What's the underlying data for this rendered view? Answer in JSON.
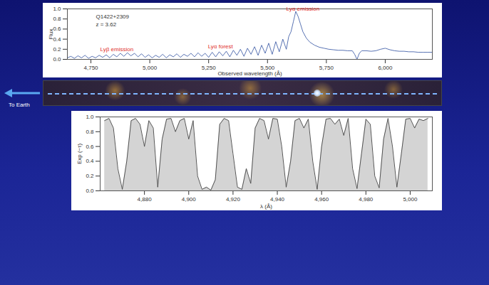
{
  "chart_data": [
    {
      "type": "line",
      "title": "Q1422+2309",
      "subtitle": "z = 3.62",
      "x_label": "Observed wavelength (Å)",
      "y_label": "Flux",
      "color": "#2f4f9f",
      "xlim": [
        4650,
        6200
      ],
      "xticks": [
        {
          "value": 4750,
          "label": "4,750"
        },
        {
          "value": 5000,
          "label": "5,000"
        },
        {
          "value": 5250,
          "label": "5,250"
        },
        {
          "value": 5500,
          "label": "5,500"
        },
        {
          "value": 5750,
          "label": "5,750"
        },
        {
          "value": 6000,
          "label": "6,000"
        }
      ],
      "ylim": [
        0,
        1
      ],
      "yticks": [
        {
          "value": 0,
          "label": "0.0"
        },
        {
          "value": 0.2,
          "label": "0.2"
        },
        {
          "value": 0.4,
          "label": "0.4"
        },
        {
          "value": 0.6,
          "label": "0.6"
        },
        {
          "value": 0.8,
          "label": "0.8"
        },
        {
          "value": 1,
          "label": "1.0"
        }
      ],
      "annotations": [
        {
          "text": "Lyα emission",
          "x": 5650,
          "y": 1.0
        },
        {
          "text": "Lyβ emission",
          "x": 4860,
          "y": 0.2
        },
        {
          "text": "Lyα forest",
          "x": 5300,
          "y": 0.25
        }
      ],
      "x": [
        4650,
        4665,
        4680,
        4695,
        4710,
        4725,
        4740,
        4755,
        4770,
        4785,
        4800,
        4815,
        4830,
        4845,
        4860,
        4875,
        4890,
        4905,
        4920,
        4935,
        4950,
        4965,
        4980,
        4995,
        5010,
        5025,
        5040,
        5055,
        5070,
        5085,
        5100,
        5115,
        5130,
        5145,
        5160,
        5175,
        5190,
        5205,
        5220,
        5235,
        5250,
        5265,
        5280,
        5295,
        5310,
        5325,
        5340,
        5355,
        5370,
        5385,
        5400,
        5415,
        5430,
        5445,
        5460,
        5475,
        5490,
        5505,
        5520,
        5535,
        5550,
        5565,
        5580,
        5590,
        5600,
        5610,
        5620,
        5630,
        5640,
        5650,
        5665,
        5680,
        5700,
        5720,
        5740,
        5760,
        5780,
        5800,
        5820,
        5840,
        5860,
        5870,
        5880,
        5890,
        5900,
        5920,
        5940,
        5960,
        5980,
        6000,
        6020,
        6040,
        6060,
        6080,
        6100,
        6120,
        6140,
        6160,
        6180,
        6200
      ],
      "values": [
        0.03,
        0.06,
        0.02,
        0.07,
        0.03,
        0.08,
        0.02,
        0.06,
        0.03,
        0.08,
        0.04,
        0.09,
        0.03,
        0.1,
        0.05,
        0.12,
        0.06,
        0.13,
        0.07,
        0.12,
        0.05,
        0.11,
        0.04,
        0.09,
        0.03,
        0.08,
        0.04,
        0.1,
        0.03,
        0.09,
        0.05,
        0.11,
        0.04,
        0.1,
        0.06,
        0.12,
        0.05,
        0.13,
        0.06,
        0.12,
        0.04,
        0.14,
        0.05,
        0.15,
        0.07,
        0.16,
        0.05,
        0.18,
        0.08,
        0.2,
        0.06,
        0.22,
        0.1,
        0.25,
        0.08,
        0.28,
        0.12,
        0.32,
        0.1,
        0.35,
        0.15,
        0.4,
        0.2,
        0.45,
        0.55,
        0.75,
        0.95,
        0.85,
        0.7,
        0.55,
        0.42,
        0.34,
        0.28,
        0.24,
        0.22,
        0.2,
        0.19,
        0.18,
        0.18,
        0.17,
        0.17,
        0.1,
        0.0,
        0.12,
        0.17,
        0.17,
        0.16,
        0.17,
        0.2,
        0.22,
        0.19,
        0.17,
        0.16,
        0.16,
        0.15,
        0.15,
        0.14,
        0.14,
        0.14,
        0.14
      ]
    },
    {
      "type": "area",
      "x_label": "λ (Å)",
      "y_label": "Exp (−τ)",
      "color": "#444444",
      "xlim": [
        4860,
        5010
      ],
      "xticks": [
        {
          "value": 4880,
          "label": "4,880"
        },
        {
          "value": 4900,
          "label": "4,900"
        },
        {
          "value": 4920,
          "label": "4,920"
        },
        {
          "value": 4940,
          "label": "4,940"
        },
        {
          "value": 4960,
          "label": "4,960"
        },
        {
          "value": 4980,
          "label": "4,980"
        },
        {
          "value": 5000,
          "label": "5,000"
        }
      ],
      "ylim": [
        0,
        1
      ],
      "yticks": [
        {
          "value": 0,
          "label": "0.0"
        },
        {
          "value": 0.2,
          "label": "0.2"
        },
        {
          "value": 0.4,
          "label": "0.4"
        },
        {
          "value": 0.6,
          "label": "0.6"
        },
        {
          "value": 0.8,
          "label": "0.8"
        },
        {
          "value": 1,
          "label": "1.0"
        }
      ],
      "x": [
        4862,
        4864,
        4866,
        4868,
        4870,
        4872,
        4874,
        4876,
        4878,
        4880,
        4882,
        4884,
        4886,
        4888,
        4890,
        4892,
        4894,
        4896,
        4898,
        4900,
        4902,
        4904,
        4906,
        4908,
        4910,
        4912,
        4914,
        4916,
        4918,
        4920,
        4922,
        4924,
        4926,
        4928,
        4930,
        4932,
        4934,
        4936,
        4938,
        4940,
        4942,
        4944,
        4946,
        4948,
        4950,
        4952,
        4954,
        4956,
        4958,
        4960,
        4962,
        4964,
        4966,
        4968,
        4970,
        4972,
        4974,
        4976,
        4978,
        4980,
        4982,
        4984,
        4986,
        4988,
        4990,
        4992,
        4994,
        4996,
        4998,
        5000,
        5002,
        5004,
        5006,
        5008
      ],
      "values": [
        0.95,
        0.98,
        0.85,
        0.3,
        0.02,
        0.4,
        0.95,
        0.98,
        0.9,
        0.6,
        0.95,
        0.85,
        0.05,
        0.7,
        0.97,
        0.98,
        0.8,
        0.95,
        0.98,
        0.7,
        0.95,
        0.2,
        0.02,
        0.05,
        0.01,
        0.15,
        0.9,
        0.98,
        0.95,
        0.5,
        0.05,
        0.02,
        0.3,
        0.1,
        0.85,
        0.98,
        0.95,
        0.7,
        0.98,
        0.97,
        0.6,
        0.05,
        0.4,
        0.95,
        0.98,
        0.85,
        0.97,
        0.4,
        0.02,
        0.6,
        0.97,
        0.98,
        0.9,
        0.97,
        0.75,
        0.98,
        0.3,
        0.03,
        0.5,
        0.97,
        0.9,
        0.2,
        0.04,
        0.7,
        0.98,
        0.6,
        0.05,
        0.5,
        0.97,
        0.98,
        0.85,
        0.97,
        0.95,
        0.98
      ]
    }
  ],
  "image_strip": {
    "label": "To Earth"
  }
}
